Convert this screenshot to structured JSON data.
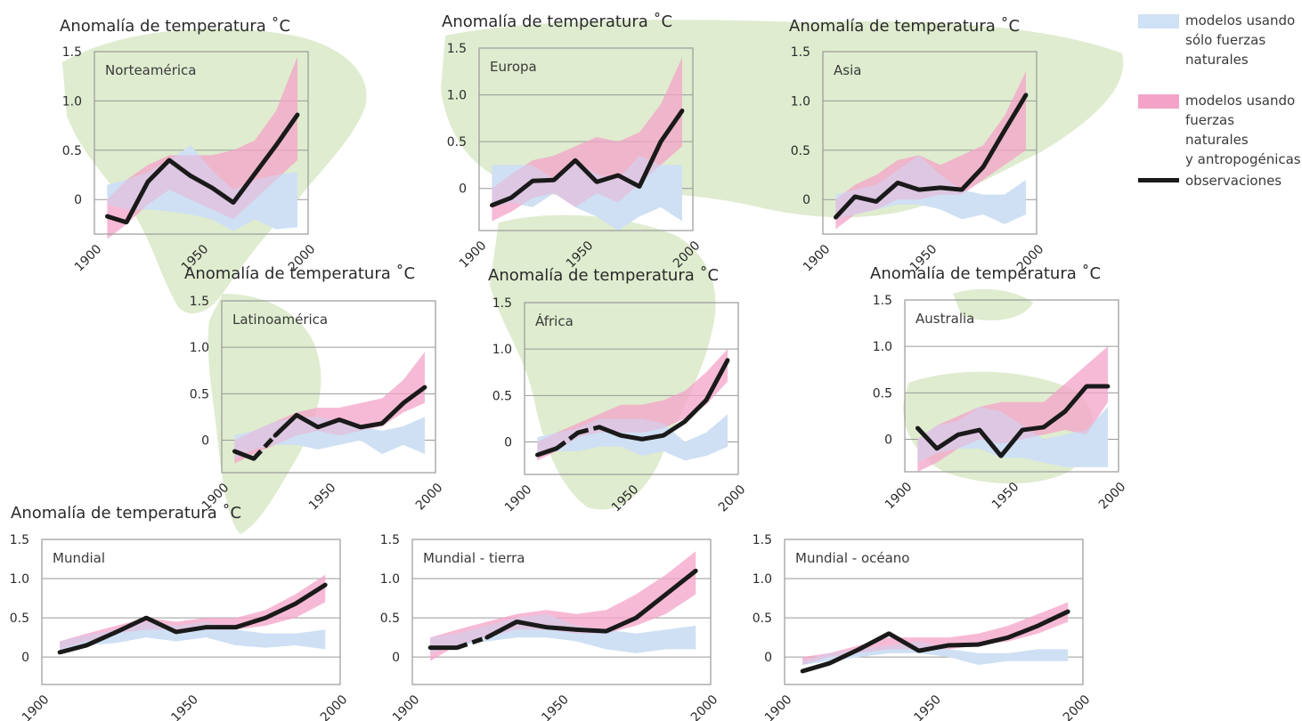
{
  "colors": {
    "natural": "#cfe1f4",
    "combined": "#f4a3c8",
    "overlap": "#b6a8d6",
    "observations": "#1a1a1a",
    "map": "#dfeccf",
    "grid": "#9a9a9a",
    "text": "#2a2a2a"
  },
  "legend": [
    {
      "key": "natural",
      "label": "modelos usando\nsólo fuerzas\nnaturales"
    },
    {
      "key": "combined",
      "label": "modelos usando\nfuerzas naturales\ny antropogénicas"
    },
    {
      "key": "observations",
      "label": "observaciones"
    }
  ],
  "chart_data": [
    {
      "type": "line",
      "title": "Anomalía de temperatura  ˚C",
      "region": "Norteamérica",
      "x": [
        1906,
        1915,
        1925,
        1935,
        1945,
        1955,
        1965,
        1975,
        1985,
        1995
      ],
      "y": [
        -0.17,
        -0.23,
        0.18,
        0.4,
        0.24,
        0.12,
        -0.03,
        0.26,
        0.55,
        0.86
      ],
      "dashed_segments": [],
      "natural_band": {
        "lower": [
          -0.05,
          -0.1,
          -0.1,
          -0.12,
          -0.15,
          -0.2,
          -0.32,
          -0.2,
          -0.3,
          -0.28
        ],
        "upper": [
          0.15,
          0.2,
          0.28,
          0.4,
          0.55,
          0.3,
          0.1,
          0.2,
          0.25,
          0.28
        ]
      },
      "combined_band": {
        "lower": [
          -0.4,
          -0.25,
          -0.05,
          0.1,
          0.0,
          -0.1,
          -0.2,
          0.0,
          0.2,
          0.4
        ],
        "upper": [
          0.0,
          0.2,
          0.35,
          0.45,
          0.45,
          0.45,
          0.5,
          0.6,
          0.9,
          1.45
        ]
      },
      "ticks_y": [
        "0",
        "0.5",
        "1.0",
        "1.5"
      ],
      "ticks_x": [
        "1900",
        "1950",
        "2000"
      ],
      "ylim": [
        -0.35,
        1.5
      ]
    },
    {
      "type": "line",
      "title": "Anomalía de temperatura  ˚C",
      "region": "Europa",
      "x": [
        1906,
        1915,
        1925,
        1935,
        1945,
        1955,
        1965,
        1975,
        1985,
        1995
      ],
      "y": [
        -0.18,
        -0.1,
        0.08,
        0.09,
        0.3,
        0.07,
        0.14,
        0.02,
        0.5,
        0.83
      ],
      "dashed_segments": [],
      "natural_band": {
        "lower": [
          -0.2,
          -0.15,
          -0.2,
          -0.05,
          -0.2,
          -0.3,
          -0.45,
          -0.3,
          -0.2,
          -0.35
        ],
        "upper": [
          0.25,
          0.25,
          0.25,
          0.1,
          0.3,
          0.15,
          0.1,
          0.35,
          0.25,
          0.25
        ]
      },
      "combined_band": {
        "lower": [
          -0.35,
          -0.25,
          -0.1,
          -0.05,
          -0.2,
          -0.05,
          -0.15,
          0.05,
          0.25,
          0.45
        ],
        "upper": [
          0.0,
          0.15,
          0.3,
          0.35,
          0.45,
          0.55,
          0.5,
          0.6,
          0.9,
          1.4
        ]
      },
      "ticks_y": [
        "0",
        "0.5",
        "1.0",
        "1.5"
      ],
      "ticks_x": [
        "1900",
        "1950",
        "2000"
      ],
      "ylim": [
        -0.45,
        1.5
      ]
    },
    {
      "type": "line",
      "title": "Anomalía de temperatura  ˚C",
      "region": "Asia",
      "x": [
        1906,
        1915,
        1925,
        1935,
        1945,
        1955,
        1965,
        1975,
        1985,
        1995
      ],
      "y": [
        -0.18,
        0.03,
        -0.02,
        0.17,
        0.1,
        0.12,
        0.1,
        0.33,
        0.7,
        1.06
      ],
      "dashed_segments": [],
      "natural_band": {
        "lower": [
          -0.2,
          -0.15,
          -0.1,
          -0.05,
          -0.05,
          -0.1,
          -0.2,
          -0.15,
          -0.25,
          -0.15
        ],
        "upper": [
          0.05,
          0.1,
          0.15,
          0.3,
          0.45,
          0.25,
          0.1,
          0.05,
          0.05,
          0.2
        ]
      },
      "combined_band": {
        "lower": [
          -0.3,
          -0.15,
          -0.1,
          0.0,
          0.0,
          0.05,
          0.05,
          0.2,
          0.35,
          0.5
        ],
        "upper": [
          0.0,
          0.15,
          0.25,
          0.4,
          0.45,
          0.35,
          0.45,
          0.55,
          0.85,
          1.3
        ]
      },
      "ticks_y": [
        "0",
        "0.5",
        "1.0",
        "1.5"
      ],
      "ticks_x": [
        "1900",
        "1950",
        "2000"
      ],
      "ylim": [
        -0.35,
        1.5
      ]
    },
    {
      "type": "line",
      "title": "Anomalía de temperatura  ˚C",
      "region": "Latinoamérica",
      "x": [
        1906,
        1915,
        1925,
        1935,
        1945,
        1955,
        1965,
        1975,
        1985,
        1995
      ],
      "y": [
        -0.12,
        -0.2,
        0.05,
        0.27,
        0.14,
        0.22,
        0.14,
        0.18,
        0.4,
        0.57
      ],
      "dashed_segments": [
        [
          1,
          2
        ]
      ],
      "natural_band": {
        "lower": [
          -0.2,
          -0.1,
          -0.05,
          -0.05,
          -0.1,
          -0.05,
          0.0,
          -0.15,
          -0.05,
          -0.15
        ],
        "upper": [
          0.05,
          0.1,
          0.2,
          0.25,
          0.25,
          0.2,
          0.15,
          0.1,
          0.15,
          0.25
        ]
      },
      "combined_band": {
        "lower": [
          -0.25,
          -0.15,
          -0.05,
          0.05,
          0.1,
          0.05,
          0.1,
          0.15,
          0.3,
          0.4
        ],
        "upper": [
          0.0,
          0.1,
          0.2,
          0.3,
          0.35,
          0.35,
          0.4,
          0.45,
          0.65,
          0.95
        ]
      },
      "ticks_y": [
        "0",
        "0.5",
        "1.0",
        "1.5"
      ],
      "ticks_x": [
        "1900",
        "1950",
        "2000"
      ],
      "ylim": [
        -0.35,
        1.5
      ]
    },
    {
      "type": "line",
      "title": "Anomalía de temperatura  ˚C",
      "region": "África",
      "x": [
        1906,
        1915,
        1925,
        1935,
        1945,
        1955,
        1965,
        1975,
        1985,
        1995
      ],
      "y": [
        -0.14,
        -0.07,
        0.1,
        0.16,
        0.07,
        0.03,
        0.07,
        0.22,
        0.45,
        0.88
      ],
      "dashed_segments": [
        [
          1,
          2
        ],
        [
          2,
          3
        ]
      ],
      "natural_band": {
        "lower": [
          -0.15,
          -0.1,
          -0.1,
          -0.05,
          -0.05,
          -0.15,
          -0.1,
          -0.2,
          -0.15,
          -0.05
        ],
        "upper": [
          0.05,
          0.1,
          0.15,
          0.25,
          0.25,
          0.25,
          0.2,
          0.0,
          0.1,
          0.3
        ]
      },
      "combined_band": {
        "lower": [
          -0.2,
          -0.1,
          0.05,
          0.1,
          0.1,
          0.1,
          0.15,
          0.25,
          0.4,
          0.65
        ],
        "upper": [
          0.0,
          0.1,
          0.2,
          0.3,
          0.4,
          0.4,
          0.45,
          0.55,
          0.75,
          1.0
        ]
      },
      "ticks_y": [
        "0",
        "0.5",
        "1.0",
        "1.5"
      ],
      "ticks_x": [
        "1900",
        "1950",
        "2000"
      ],
      "ylim": [
        -0.35,
        1.5
      ]
    },
    {
      "type": "line",
      "title": "Anomalía de temperatura ˚C",
      "region": "Australia",
      "x": [
        1906,
        1915,
        1925,
        1935,
        1945,
        1955,
        1965,
        1975,
        1985,
        1995
      ],
      "y": [
        0.12,
        -0.1,
        0.05,
        0.1,
        -0.18,
        0.1,
        0.13,
        0.3,
        0.57,
        0.57
      ],
      "dashed_segments": [],
      "natural_band": {
        "lower": [
          -0.25,
          -0.15,
          -0.1,
          -0.1,
          -0.2,
          -0.2,
          -0.25,
          -0.3,
          -0.3,
          -0.3
        ],
        "upper": [
          0.0,
          0.15,
          0.2,
          0.35,
          0.3,
          0.15,
          0.0,
          0.05,
          0.1,
          0.35
        ]
      },
      "combined_band": {
        "lower": [
          -0.35,
          -0.25,
          -0.1,
          0.0,
          -0.05,
          0.0,
          0.05,
          0.1,
          0.05,
          0.4
        ],
        "upper": [
          0.0,
          0.15,
          0.25,
          0.35,
          0.4,
          0.4,
          0.4,
          0.6,
          0.8,
          1.0
        ]
      },
      "ticks_y": [
        "0",
        "0.5",
        "1.0",
        "1.5"
      ],
      "ticks_x": [
        "1900",
        "1950",
        "2000"
      ],
      "ylim": [
        -0.35,
        1.5
      ]
    },
    {
      "type": "line",
      "title": "Anomalía de temperatura ˚C",
      "region": "Mundial",
      "x": [
        1906,
        1915,
        1925,
        1935,
        1945,
        1955,
        1965,
        1975,
        1985,
        1995
      ],
      "y": [
        0.06,
        0.15,
        0.32,
        0.5,
        0.32,
        0.38,
        0.38,
        0.5,
        0.68,
        0.92
      ],
      "dashed_segments": [],
      "natural_band": {
        "lower": [
          0.05,
          0.15,
          0.18,
          0.25,
          0.2,
          0.25,
          0.15,
          0.12,
          0.15,
          0.1
        ],
        "upper": [
          0.2,
          0.28,
          0.35,
          0.45,
          0.4,
          0.45,
          0.35,
          0.3,
          0.3,
          0.35
        ]
      },
      "combined_band": {
        "lower": [
          0.1,
          0.2,
          0.3,
          0.35,
          0.35,
          0.35,
          0.35,
          0.4,
          0.5,
          0.7
        ],
        "upper": [
          0.2,
          0.3,
          0.4,
          0.5,
          0.45,
          0.5,
          0.5,
          0.6,
          0.8,
          1.05
        ]
      },
      "ticks_y": [
        "0",
        "0.5",
        "1.0",
        "1.5"
      ],
      "ticks_x": [
        "1900",
        "1950",
        "2000"
      ],
      "ylim": [
        -0.35,
        1.5
      ]
    },
    {
      "type": "line",
      "title": "",
      "region": "Mundial - tierra",
      "x": [
        1906,
        1915,
        1925,
        1935,
        1945,
        1955,
        1965,
        1975,
        1985,
        1995
      ],
      "y": [
        0.12,
        0.12,
        0.25,
        0.45,
        0.38,
        0.35,
        0.33,
        0.5,
        0.8,
        1.1
      ],
      "dashed_segments": [
        [
          1,
          2
        ]
      ],
      "natural_band": {
        "lower": [
          0.05,
          0.15,
          0.2,
          0.25,
          0.25,
          0.2,
          0.1,
          0.05,
          0.1,
          0.1
        ],
        "upper": [
          0.25,
          0.3,
          0.4,
          0.5,
          0.55,
          0.4,
          0.35,
          0.3,
          0.35,
          0.4
        ]
      },
      "combined_band": {
        "lower": [
          -0.05,
          0.15,
          0.25,
          0.35,
          0.35,
          0.3,
          0.3,
          0.4,
          0.55,
          0.8
        ],
        "upper": [
          0.25,
          0.35,
          0.45,
          0.55,
          0.6,
          0.55,
          0.6,
          0.8,
          1.05,
          1.35
        ]
      },
      "ticks_y": [
        "0",
        "0.5",
        "1.0",
        "1.5"
      ],
      "ticks_x": [
        "1900",
        "1950",
        "2000"
      ],
      "ylim": [
        -0.35,
        1.5
      ]
    },
    {
      "type": "line",
      "title": "",
      "region": "Mundial - océano",
      "x": [
        1906,
        1915,
        1925,
        1935,
        1945,
        1955,
        1965,
        1975,
        1985,
        1995
      ],
      "y": [
        -0.18,
        -0.08,
        0.1,
        0.3,
        0.08,
        0.15,
        0.16,
        0.25,
        0.4,
        0.58
      ],
      "dashed_segments": [],
      "natural_band": {
        "lower": [
          -0.1,
          -0.05,
          0.0,
          0.05,
          0.05,
          0.0,
          -0.1,
          -0.05,
          -0.05,
          -0.05
        ],
        "upper": [
          -0.05,
          0.05,
          0.1,
          0.15,
          0.2,
          0.1,
          0.05,
          0.05,
          0.1,
          0.1
        ]
      },
      "combined_band": {
        "lower": [
          -0.1,
          0.0,
          0.05,
          0.1,
          0.1,
          0.1,
          0.15,
          0.2,
          0.3,
          0.45
        ],
        "upper": [
          0.0,
          0.05,
          0.15,
          0.25,
          0.25,
          0.25,
          0.3,
          0.4,
          0.55,
          0.7
        ]
      },
      "ticks_y": [
        "0",
        "0.5",
        "1.0",
        "1.5"
      ],
      "ticks_x": [
        "1900",
        "1950",
        "2000"
      ],
      "ylim": [
        -0.35,
        1.5
      ]
    }
  ]
}
